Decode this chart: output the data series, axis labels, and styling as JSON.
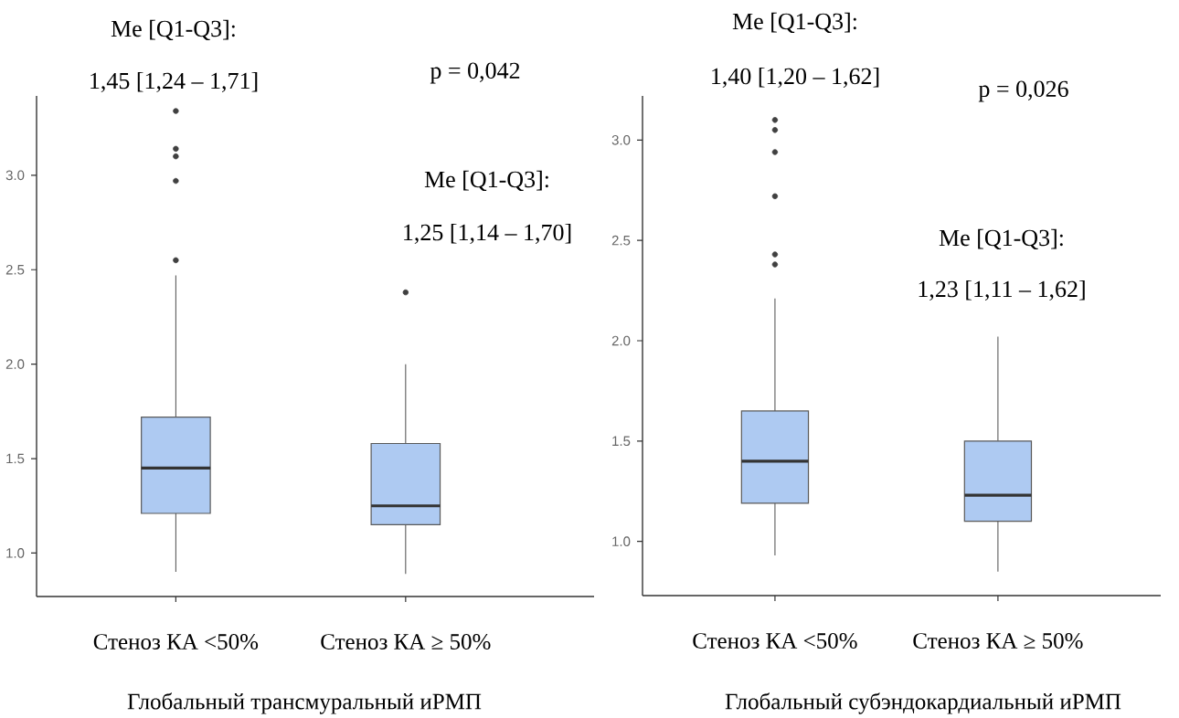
{
  "chart_data": [
    {
      "type": "box",
      "categories": [
        "Стеноз КА <50%",
        "Стеноз КА ≥ 50%"
      ],
      "xlabel": "Глобальный трансмуральный иРМП",
      "color": "#aecaf2",
      "boxes": [
        {
          "low": 0.9,
          "q1": 1.21,
          "median": 1.45,
          "q3": 1.72,
          "high": 2.47,
          "outliers": [
            2.55,
            2.97,
            3.1,
            3.14,
            3.34
          ]
        },
        {
          "low": 0.89,
          "q1": 1.15,
          "median": 1.25,
          "q3": 1.58,
          "high": 2.0,
          "outliers": [
            2.38
          ]
        }
      ],
      "ylim": [
        0.77,
        3.42
      ],
      "yticks": [
        {
          "value": 1,
          "label": "1.0"
        },
        {
          "value": 1.5,
          "label": "1.5"
        },
        {
          "value": 2,
          "label": "2.0"
        },
        {
          "value": 2.5,
          "label": "2.5"
        },
        {
          "value": 3,
          "label": "3.0"
        }
      ],
      "annotations": [
        "Me [Q1-Q3]:",
        "1,45 [1,24 – 1,71]",
        "p = 0,042",
        "Me [Q1-Q3]:",
        "1,25 [1,14 – 1,70]"
      ]
    },
    {
      "type": "box",
      "categories": [
        "Стеноз КА <50%",
        "Стеноз КА ≥ 50%"
      ],
      "xlabel": "Глобальный субэндокардиальный иРМП",
      "color": "#aecaf2",
      "boxes": [
        {
          "low": 0.93,
          "q1": 1.19,
          "median": 1.4,
          "q3": 1.65,
          "high": 2.21,
          "outliers": [
            2.38,
            2.43,
            2.72,
            2.94,
            3.05,
            3.1
          ]
        },
        {
          "low": 0.85,
          "q1": 1.1,
          "median": 1.23,
          "q3": 1.5,
          "high": 2.02
        }
      ],
      "ylim": [
        0.73,
        3.22
      ],
      "yticks": [
        {
          "value": 1,
          "label": "1.0"
        },
        {
          "value": 1.5,
          "label": "1.5"
        },
        {
          "value": 2,
          "label": "2.0"
        },
        {
          "value": 2.5,
          "label": "2.5"
        },
        {
          "value": 3,
          "label": "3.0"
        }
      ],
      "annotations": [
        "Me [Q1-Q3]:",
        "1,40 [1,20 – 1,62]",
        "p = 0,026",
        "Me [Q1-Q3]:",
        "1,23 [1,11 – 1,62]"
      ]
    }
  ]
}
